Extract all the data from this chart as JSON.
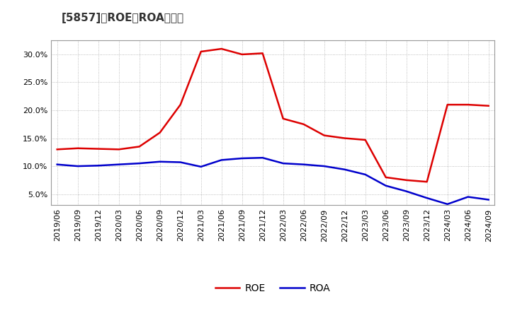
{
  "title": "[5857]　ROE、ROAの推移",
  "roe_data": {
    "dates": [
      "2019/06",
      "2019/09",
      "2019/12",
      "2020/03",
      "2020/06",
      "2020/09",
      "2020/12",
      "2021/03",
      "2021/06",
      "2021/09",
      "2021/12",
      "2022/03",
      "2022/06",
      "2022/09",
      "2022/12",
      "2023/03",
      "2023/06",
      "2023/09",
      "2023/12",
      "2024/03",
      "2024/06",
      "2024/09"
    ],
    "values": [
      13.0,
      13.2,
      13.1,
      13.0,
      13.5,
      16.0,
      21.0,
      30.5,
      31.0,
      30.0,
      30.2,
      18.5,
      17.5,
      15.5,
      15.0,
      14.7,
      8.0,
      7.5,
      7.2,
      21.0,
      21.0,
      20.8
    ]
  },
  "roa_data": {
    "dates": [
      "2019/06",
      "2019/09",
      "2019/12",
      "2020/03",
      "2020/06",
      "2020/09",
      "2020/12",
      "2021/03",
      "2021/06",
      "2021/09",
      "2021/12",
      "2022/03",
      "2022/06",
      "2022/09",
      "2022/12",
      "2023/03",
      "2023/06",
      "2023/09",
      "2023/12",
      "2024/03",
      "2024/06",
      "2024/09"
    ],
    "values": [
      10.3,
      10.0,
      10.1,
      10.3,
      10.5,
      10.8,
      10.7,
      9.9,
      11.1,
      11.4,
      11.5,
      10.5,
      10.3,
      10.0,
      9.4,
      8.5,
      6.5,
      5.5,
      4.3,
      3.2,
      4.5,
      4.0
    ]
  },
  "roe_color": "#dd0000",
  "roa_color": "#0000cc",
  "background_color": "#ffffff",
  "plot_bg_color": "#ffffff",
  "grid_color": "#aaaaaa",
  "ylim": [
    3.0,
    32.5
  ],
  "yticks": [
    5.0,
    10.0,
    15.0,
    20.0,
    25.0,
    30.0
  ],
  "title_fontsize": 11,
  "legend_fontsize": 10,
  "tick_fontsize": 8
}
